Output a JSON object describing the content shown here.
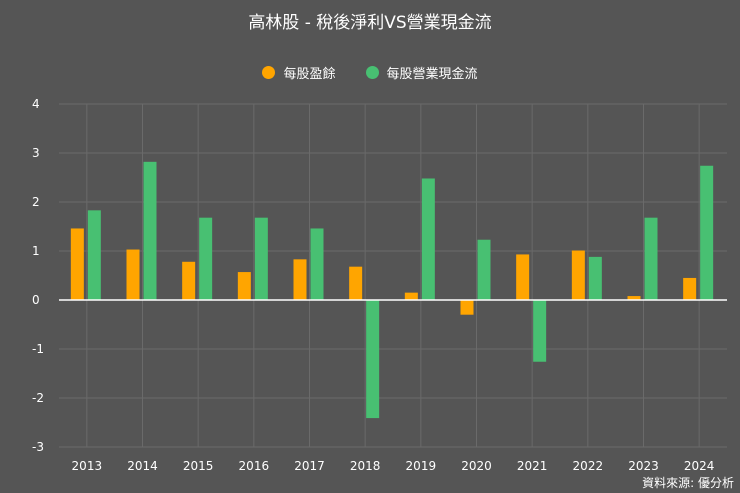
{
  "chart_data": {
    "type": "bar",
    "title": "高林股 - 稅後淨利VS營業現金流",
    "categories": [
      "2013",
      "2014",
      "2015",
      "2016",
      "2017",
      "2018",
      "2019",
      "2020",
      "2021",
      "2022",
      "2023",
      "2024"
    ],
    "series": [
      {
        "name": "每股盈餘",
        "color": "#FFA500",
        "values": [
          1.46,
          1.03,
          0.78,
          0.57,
          0.83,
          0.68,
          0.15,
          -0.3,
          0.93,
          1.01,
          0.08,
          0.45
        ]
      },
      {
        "name": "每股營業現金流",
        "color": "#48C072",
        "values": [
          1.83,
          2.82,
          1.68,
          1.68,
          1.46,
          -2.41,
          2.48,
          1.23,
          -1.26,
          0.88,
          1.68,
          2.74
        ]
      }
    ],
    "ylim": [
      -3,
      4
    ],
    "yticks": [
      4,
      3,
      2,
      1,
      0,
      -1,
      -2,
      -3
    ],
    "grid": true,
    "legend_position": "top",
    "xlabel": "",
    "ylabel": ""
  },
  "source": "資料來源: 優分析"
}
